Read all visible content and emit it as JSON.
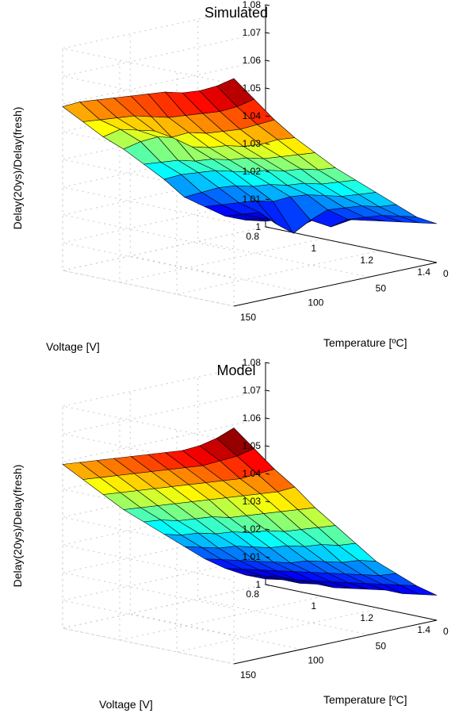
{
  "chart_data": [
    {
      "type": "surface",
      "title": "Simulated",
      "xlabel": "Voltage [V]",
      "ylabel": "Temperature [ºC]",
      "zlabel": "Delay(20ys)/Delay(fresh)",
      "x_ticks": [
        "0.8",
        "1",
        "1.2",
        "1.4"
      ],
      "y_ticks": [
        "150",
        "100",
        "50",
        "0"
      ],
      "z_ticks": [
        "1",
        "1.01",
        "1.02",
        "1.03",
        "1.04",
        "1.05",
        "1.06",
        "1.07",
        "1.08"
      ],
      "xlim": [
        0.8,
        1.4
      ],
      "ylim": [
        0,
        150
      ],
      "zlim": [
        1.0,
        1.08
      ],
      "grid": true,
      "colormap": "jet",
      "voltage": [
        0.8,
        0.86,
        0.92,
        0.98,
        1.04,
        1.1,
        1.16,
        1.22,
        1.28,
        1.34,
        1.4
      ],
      "temperature": [
        150,
        135,
        120,
        105,
        90,
        75,
        60,
        45,
        30,
        15,
        0
      ],
      "z": [
        [
          1.059,
          1.062,
          1.064,
          1.066,
          1.068,
          1.07,
          1.072,
          1.073,
          1.075,
          1.078,
          1.082
        ],
        [
          1.052,
          1.054,
          1.056,
          1.058,
          1.059,
          1.06,
          1.062,
          1.064,
          1.066,
          1.069,
          1.073
        ],
        [
          1.045,
          1.049,
          1.05,
          1.051,
          1.05,
          1.053,
          1.054,
          1.056,
          1.058,
          1.061,
          1.064
        ],
        [
          1.039,
          1.043,
          1.046,
          1.047,
          1.045,
          1.046,
          1.048,
          1.049,
          1.051,
          1.054,
          1.056
        ],
        [
          1.032,
          1.034,
          1.036,
          1.037,
          1.039,
          1.04,
          1.042,
          1.043,
          1.045,
          1.047,
          1.049
        ],
        [
          1.025,
          1.028,
          1.03,
          1.032,
          1.033,
          1.034,
          1.036,
          1.037,
          1.039,
          1.04,
          1.042
        ],
        [
          1.017,
          1.02,
          1.023,
          1.025,
          1.026,
          1.028,
          1.029,
          1.031,
          1.032,
          1.034,
          1.036
        ],
        [
          1.012,
          1.014,
          1.016,
          1.018,
          1.019,
          1.022,
          1.024,
          1.025,
          1.026,
          1.028,
          1.03
        ],
        [
          1.007,
          1.009,
          1.011,
          1.008,
          1.006,
          1.012,
          1.017,
          1.019,
          1.021,
          1.022,
          1.024
        ],
        [
          1.004,
          1.006,
          1.007,
          1.005,
          1.01,
          1.008,
          1.012,
          1.014,
          1.016,
          1.017,
          1.018
        ],
        [
          1.002,
          1.004,
          1.005,
          1.007,
          1.008,
          1.009,
          1.01,
          1.011,
          1.012,
          1.013,
          1.014
        ]
      ]
    },
    {
      "type": "surface",
      "title": "Model",
      "xlabel": "Voltage [V]",
      "ylabel": "Temperature [ºC]",
      "zlabel": "Delay(20ys)/Delay(fresh)",
      "x_ticks": [
        "0.8",
        "1",
        "1.2",
        "1.4"
      ],
      "y_ticks": [
        "150",
        "100",
        "50",
        "0"
      ],
      "z_ticks": [
        "1",
        "1.01",
        "1.02",
        "1.03",
        "1.04",
        "1.05",
        "1.06",
        "1.07",
        "1.08"
      ],
      "xlim": [
        0.8,
        1.4
      ],
      "ylim": [
        0,
        150
      ],
      "zlim": [
        1.0,
        1.08
      ],
      "grid": true,
      "colormap": "jet",
      "voltage": [
        0.8,
        0.86,
        0.92,
        0.98,
        1.04,
        1.1,
        1.16,
        1.22,
        1.28,
        1.34,
        1.4
      ],
      "temperature": [
        150,
        135,
        120,
        105,
        90,
        75,
        60,
        45,
        30,
        15,
        0
      ],
      "z": [
        [
          1.059,
          1.061,
          1.063,
          1.065,
          1.067,
          1.069,
          1.071,
          1.073,
          1.076,
          1.08,
          1.085
        ],
        [
          1.052,
          1.054,
          1.056,
          1.058,
          1.06,
          1.062,
          1.064,
          1.066,
          1.069,
          1.072,
          1.076
        ],
        [
          1.045,
          1.047,
          1.049,
          1.051,
          1.053,
          1.055,
          1.057,
          1.059,
          1.061,
          1.064,
          1.067
        ],
        [
          1.038,
          1.04,
          1.042,
          1.044,
          1.046,
          1.048,
          1.05,
          1.052,
          1.054,
          1.056,
          1.059
        ],
        [
          1.032,
          1.034,
          1.035,
          1.037,
          1.039,
          1.04,
          1.042,
          1.044,
          1.046,
          1.048,
          1.05
        ],
        [
          1.026,
          1.027,
          1.029,
          1.03,
          1.032,
          1.033,
          1.035,
          1.036,
          1.038,
          1.04,
          1.042
        ],
        [
          1.02,
          1.021,
          1.022,
          1.024,
          1.025,
          1.026,
          1.028,
          1.029,
          1.031,
          1.032,
          1.034
        ],
        [
          1.014,
          1.015,
          1.016,
          1.017,
          1.018,
          1.019,
          1.021,
          1.022,
          1.023,
          1.025,
          1.026
        ],
        [
          1.009,
          1.01,
          1.011,
          1.012,
          1.013,
          1.014,
          1.015,
          1.016,
          1.017,
          1.018,
          1.02
        ],
        [
          1.005,
          1.006,
          1.007,
          1.007,
          1.008,
          1.009,
          1.01,
          1.011,
          1.012,
          1.013,
          1.014
        ],
        [
          1.002,
          1.003,
          1.003,
          1.004,
          1.004,
          1.005,
          1.006,
          1.007,
          1.007,
          1.008,
          1.009
        ]
      ]
    }
  ]
}
